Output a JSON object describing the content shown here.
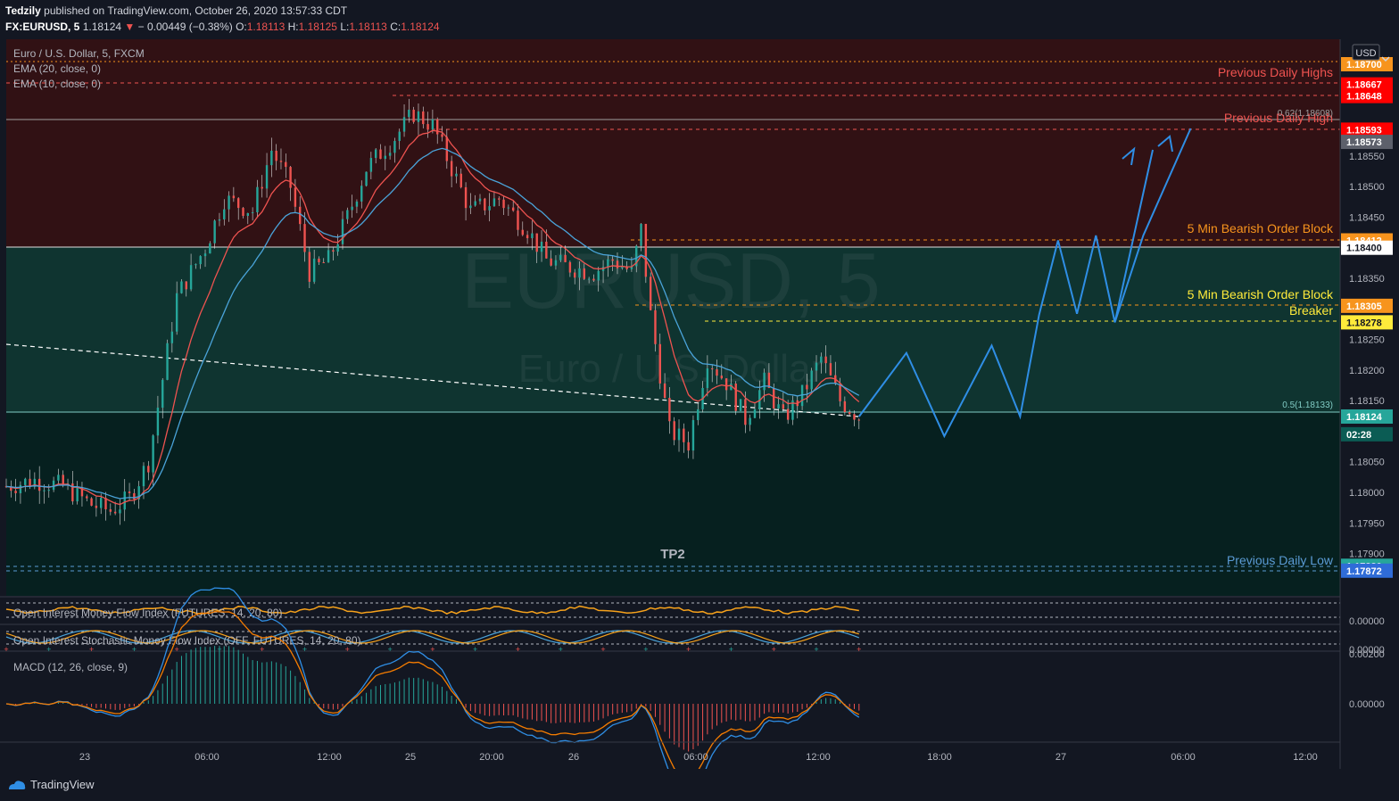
{
  "header": {
    "author": "Tedzily",
    "published": "published on TradingView.com, October 26, 2020 13:57:33 CDT",
    "symbol": "FX:EURUSD, 5",
    "last": "1.18124",
    "change": "− 0.00449 (−0.38%)",
    "o_label": "O:",
    "o": "1.18113",
    "h_label": "H:",
    "h": "1.18125",
    "l_label": "L:",
    "l": "1.18113",
    "c_label": "C:",
    "c": "1.18124"
  },
  "legend": {
    "title": "Euro / U.S. Dollar, 5, FXCM",
    "ema20": "EMA (20, close, 0)",
    "ema10": "EMA (10, close, 0)",
    "oi_mfi": "Open Interest Money Flow Index (FUTURES, 14, 20, 80)",
    "oi_stoch": "Open Interest Stochastic Money Flow Index (OFF, FUTURES, 14, 20, 80)",
    "macd": "MACD (12, 26, close, 9)"
  },
  "watermark": {
    "symbol": "EURUSD, 5",
    "name": "Euro / U.S. Dollar"
  },
  "currency_badge": "USD",
  "colors": {
    "background": "#131722",
    "premium_zone": "#311114",
    "discount_zone": "#0f3430",
    "bull": "#26a69a",
    "bear": "#ef5350",
    "projection": "#2f8ee5",
    "ema_fast": "#ef5350",
    "ema_slow": "#4aa3d9",
    "orderblock": "#f7941d",
    "breaker": "#ffeb3b",
    "low_line": "#5b9bd5"
  },
  "annotations": {
    "prev_daily_highs": "Previous Daily Highs",
    "prev_daily_high": "Previous Daily High",
    "bearish_ob": "5 Min Bearish Order Block",
    "bearish_ob_breaker": "5 Min Bearish Order Block",
    "breaker": "Breaker",
    "prev_daily_low": "Previous Daily Low",
    "tp2": "TP2",
    "fib_062": "0.62(1.18608)",
    "fib_05": "0.5(1.18133)"
  },
  "price_tags": [
    {
      "text": "1.18700",
      "color": "#f7941d",
      "price": 1.187
    },
    {
      "text": "1.18667",
      "color": "#ff0000",
      "price": 1.18667
    },
    {
      "text": "1.18648",
      "color": "#ff0000",
      "price": 1.18648
    },
    {
      "text": "1.18593",
      "color": "#ff0000",
      "price": 1.18593
    },
    {
      "text": "1.18573",
      "color": "#5d606b",
      "price": 1.18573
    },
    {
      "text": "1.18412",
      "color": "#f7941d",
      "price": 1.18412
    },
    {
      "text": "1.18400",
      "color": "#ffffff",
      "price": 1.184
    },
    {
      "text": "1.18305",
      "color": "#f7941d",
      "price": 1.18305
    },
    {
      "text": "1.18278",
      "color": "#ffeb3b",
      "price": 1.18278
    },
    {
      "text": "1.18124",
      "color": "#26a69a",
      "price": 1.18124
    },
    {
      "text": "02:28",
      "color": "#0b5c54",
      "price": 1.18095
    },
    {
      "text": "1.17880",
      "color": "#26a69a",
      "price": 1.1788
    },
    {
      "text": "1.17872",
      "color": "#2f6cd8",
      "price": 1.17872
    }
  ],
  "y_ticks": [
    "1.18550",
    "1.18500",
    "1.18450",
    "1.18350",
    "1.18300",
    "1.18250",
    "1.18200",
    "1.18150",
    "1.18050",
    "1.18000",
    "1.17950",
    "1.17900"
  ],
  "y_tick_values": [
    1.1855,
    1.185,
    1.1845,
    1.1835,
    1.183,
    1.1825,
    1.182,
    1.1815,
    1.1805,
    1.18,
    1.1795,
    1.179
  ],
  "indicator_ticks": {
    "oi_mfi": "0.00000",
    "oi_stoch_a": "0.00000",
    "oi_stoch_b": "0.00200",
    "macd": "0.00000"
  },
  "x_labels": [
    "23",
    "06:00",
    "12:00",
    "25",
    "20:00",
    "26",
    "06:00",
    "12:00",
    "18:00",
    "27",
    "06:00",
    "12:00"
  ],
  "footer": {
    "brand": "TradingView"
  },
  "chart_data": {
    "type": "candlestick",
    "symbol": "FX:EURUSD",
    "interval": "5",
    "ylim": [
      1.17855,
      1.18705
    ],
    "x_tick_labels": [
      "23",
      "06:00",
      "12:00",
      "25",
      "20:00",
      "26",
      "06:00",
      "12:00",
      "18:00",
      "27",
      "06:00",
      "12:00"
    ],
    "price_path": [
      {
        "t": 0,
        "p": 1.1801
      },
      {
        "t": 3,
        "p": 1.1802
      },
      {
        "t": 6,
        "p": 1.1801
      },
      {
        "t": 9,
        "p": 1.1798
      },
      {
        "t": 11,
        "p": 1.1797
      },
      {
        "t": 13,
        "p": 1.1799
      },
      {
        "t": 15,
        "p": 1.1805
      },
      {
        "t": 18,
        "p": 1.1832
      },
      {
        "t": 21,
        "p": 1.184
      },
      {
        "t": 23,
        "p": 1.1848
      },
      {
        "t": 26,
        "p": 1.1846
      },
      {
        "t": 28,
        "p": 1.1856
      },
      {
        "t": 30,
        "p": 1.185
      },
      {
        "t": 32,
        "p": 1.1836
      },
      {
        "t": 34,
        "p": 1.1838
      },
      {
        "t": 36,
        "p": 1.1845
      },
      {
        "t": 38,
        "p": 1.1853
      },
      {
        "t": 41,
        "p": 1.1858
      },
      {
        "t": 43,
        "p": 1.1862
      },
      {
        "t": 45,
        "p": 1.186
      },
      {
        "t": 47,
        "p": 1.1853
      },
      {
        "t": 49,
        "p": 1.1846
      },
      {
        "t": 52,
        "p": 1.1848
      },
      {
        "t": 55,
        "p": 1.1843
      },
      {
        "t": 57,
        "p": 1.1838
      },
      {
        "t": 59,
        "p": 1.1837
      },
      {
        "t": 62,
        "p": 1.1836
      },
      {
        "t": 64,
        "p": 1.1838
      },
      {
        "t": 66,
        "p": 1.1836
      },
      {
        "t": 67,
        "p": 1.1843
      },
      {
        "t": 68,
        "p": 1.1829
      },
      {
        "t": 70,
        "p": 1.181
      },
      {
        "t": 72,
        "p": 1.1808
      },
      {
        "t": 74,
        "p": 1.1822
      },
      {
        "t": 76,
        "p": 1.1818
      },
      {
        "t": 78,
        "p": 1.1812
      },
      {
        "t": 80,
        "p": 1.1818
      },
      {
        "t": 82,
        "p": 1.1812
      },
      {
        "t": 84,
        "p": 1.1816
      },
      {
        "t": 86,
        "p": 1.1822
      },
      {
        "t": 88,
        "p": 1.1815
      },
      {
        "t": 90,
        "p": 1.18124
      }
    ],
    "projection_path": [
      {
        "t": 90,
        "p": 1.18124
      },
      {
        "t": 95,
        "p": 1.18228
      },
      {
        "t": 99,
        "p": 1.18092
      },
      {
        "t": 104,
        "p": 1.1824
      },
      {
        "t": 107,
        "p": 1.18124
      },
      {
        "t": 109,
        "p": 1.1829
      },
      {
        "t": 111,
        "p": 1.18412
      },
      {
        "t": 113,
        "p": 1.18292
      },
      {
        "t": 115,
        "p": 1.1842
      },
      {
        "t": 117,
        "p": 1.18278
      },
      {
        "t": 121,
        "p": 1.1856
      },
      {
        "t": 117,
        "p": 1.18278
      },
      {
        "t": 120,
        "p": 1.1842
      },
      {
        "t": 125,
        "p": 1.18595
      }
    ],
    "levels": [
      {
        "name": "Previous Daily Highs",
        "price": 1.18667
      },
      {
        "name": "Previous Daily High",
        "price": 1.18593
      },
      {
        "name": "5 Min Bearish Order Block",
        "price": 1.18412
      },
      {
        "name": "5 Min Bearish Order Block Breaker",
        "price": 1.18305
      },
      {
        "name": "Breaker",
        "price": 1.18278
      },
      {
        "name": "0.62",
        "price": 1.18608
      },
      {
        "name": "0.5",
        "price": 1.18133
      },
      {
        "name": "Previous Daily Low",
        "price": 1.1788
      },
      {
        "name": "Previous Daily Low",
        "price": 1.17872
      }
    ],
    "last_price": 1.18124
  }
}
